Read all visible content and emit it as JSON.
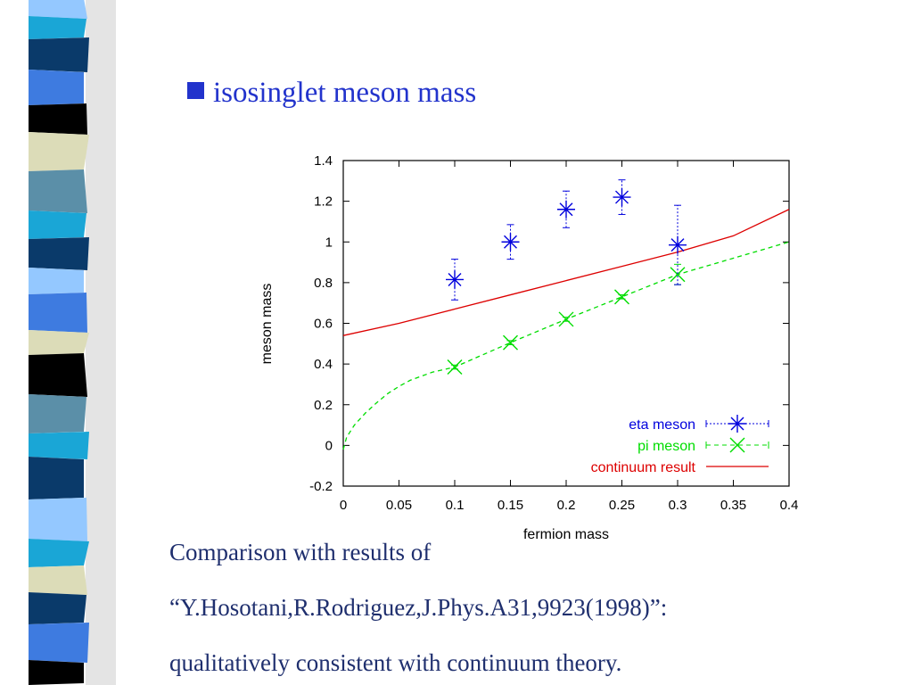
{
  "slide": {
    "title": "isosinglet meson mass",
    "caption_lines": [
      "Comparison with results of",
      "“Y.Hosotani,R.Rodriguez,J.Phys.A31,9923(1998)”:",
      "qualitatively consistent with continuum theory."
    ]
  },
  "colors": {
    "title": "#2233cc",
    "caption": "#1f2f6e",
    "eta": "#0000dd",
    "pi": "#00dd00",
    "continuum": "#dd0000",
    "stripe": [
      "#0a3a6a",
      "#5b8fa8",
      "#3e7be0",
      "#000000",
      "#dcdcb8",
      "#1aa6d6",
      "#94c8ff"
    ]
  },
  "chart_data": {
    "type": "scatter",
    "xlabel": "fermion mass",
    "ylabel": "meson mass",
    "xlim": [
      0,
      0.4
    ],
    "ylim": [
      -0.2,
      1.4
    ],
    "xticks": [
      "0",
      "0.05",
      "0.1",
      "0.15",
      "0.2",
      "0.25",
      "0.3",
      "0.35",
      "0.4"
    ],
    "yticks": [
      "-0.2",
      "0",
      "0.2",
      "0.4",
      "0.6",
      "0.8",
      "1",
      "1.2",
      "1.4"
    ],
    "legend_position": "bottom-right",
    "series": [
      {
        "name": "eta meson",
        "style": "points-with-errorbars",
        "marker": "asterisk",
        "x": [
          0.1,
          0.15,
          0.2,
          0.25,
          0.3
        ],
        "y": [
          0.815,
          1.0,
          1.16,
          1.22,
          0.985
        ],
        "yerr": [
          0.1,
          0.085,
          0.09,
          0.085,
          0.195
        ]
      },
      {
        "name": "pi meson",
        "style": "points-with-dashed-line",
        "marker": "cross",
        "x": [
          0.1,
          0.15,
          0.2,
          0.25,
          0.3
        ],
        "y": [
          0.385,
          0.505,
          0.62,
          0.73,
          0.84
        ],
        "yerr": [
          0.01,
          0.01,
          0.01,
          0.01,
          0.05
        ],
        "fit_curve": {
          "x": [
            0,
            0.003,
            0.01,
            0.02,
            0.03,
            0.04,
            0.05,
            0.06,
            0.08,
            0.1,
            0.15,
            0.2,
            0.25,
            0.3,
            0.35,
            0.4
          ],
          "y": [
            -0.02,
            0.04,
            0.1,
            0.16,
            0.21,
            0.255,
            0.29,
            0.32,
            0.36,
            0.385,
            0.505,
            0.62,
            0.73,
            0.84,
            0.92,
            1.0
          ]
        }
      },
      {
        "name": "continuum result",
        "style": "line",
        "x": [
          0,
          0.05,
          0.1,
          0.15,
          0.2,
          0.25,
          0.3,
          0.35,
          0.4
        ],
        "y": [
          0.54,
          0.6,
          0.67,
          0.74,
          0.81,
          0.88,
          0.95,
          1.03,
          1.16
        ]
      }
    ]
  }
}
